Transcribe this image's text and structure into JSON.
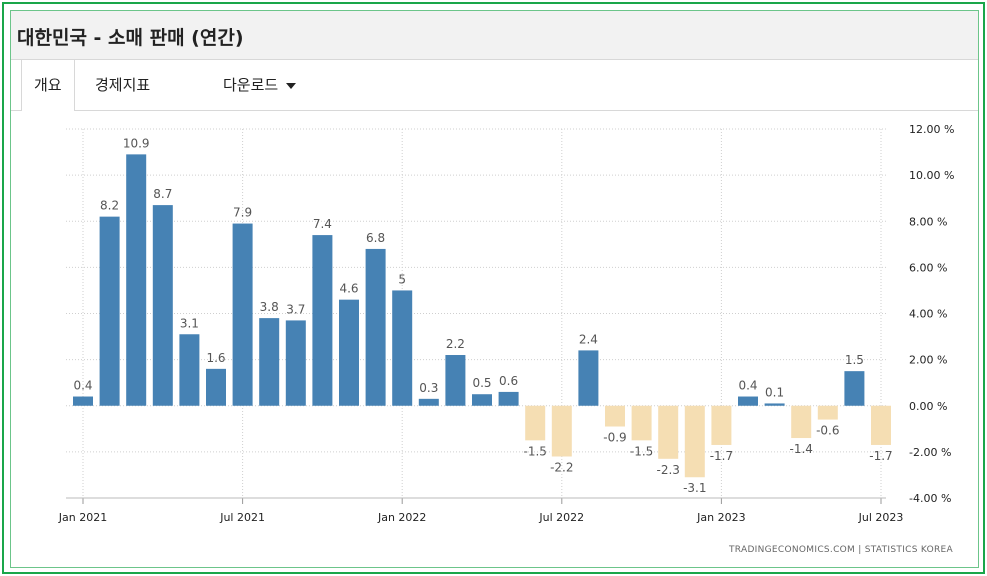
{
  "title": "대한민국 - 소매 판매 (연간)",
  "tabs": [
    {
      "label": "개요"
    },
    {
      "label": "경제지표"
    },
    {
      "label": "다운로드"
    }
  ],
  "source": "TRADINGECONOMICS.COM | STATISTICS KOREA",
  "colors": {
    "positive": "#4682b4",
    "negative": "#f5deb3"
  },
  "chart_data": {
    "type": "bar",
    "title": "대한민국 - 소매 판매 (연간)",
    "xlabel": "",
    "ylabel": "",
    "ylim": [
      -4,
      12
    ],
    "yticks": [
      "12.00 %",
      "10.00 %",
      "8.00 %",
      "6.00 %",
      "4.00 %",
      "2.00 %",
      "0.00 %",
      "-2.00 %",
      "-4.00 %"
    ],
    "xticks": [
      "Jan 2021",
      "Jul 2021",
      "Jan 2022",
      "Jul 2022",
      "Jan 2023",
      "Jul 2023"
    ],
    "categories": [
      "Jan 2021",
      "Feb 2021",
      "Mar 2021",
      "Apr 2021",
      "May 2021",
      "Jun 2021",
      "Jul 2021",
      "Aug 2021",
      "Sep 2021",
      "Oct 2021",
      "Nov 2021",
      "Dec 2021",
      "Jan 2022",
      "Feb 2022",
      "Mar 2022",
      "Apr 2022",
      "May 2022",
      "Jun 2022",
      "Jul 2022",
      "Aug 2022",
      "Sep 2022",
      "Oct 2022",
      "Nov 2022",
      "Dec 2022",
      "Jan 2023",
      "Feb 2023",
      "Mar 2023",
      "Apr 2023",
      "May 2023",
      "Jun 2023",
      "Jul 2023"
    ],
    "values": [
      0.4,
      8.2,
      10.9,
      8.7,
      3.1,
      1.6,
      7.9,
      3.8,
      3.7,
      7.4,
      4.6,
      6.8,
      5,
      0.3,
      2.2,
      0.5,
      0.6,
      -1.5,
      -2.2,
      2.4,
      -0.9,
      -1.5,
      -2.3,
      -3.1,
      -1.7,
      0.4,
      0.1,
      -1.4,
      -0.6,
      1.5,
      -1.7
    ],
    "labels": [
      "0.4",
      "8.2",
      "10.9",
      "8.7",
      "3.1",
      "1.6",
      "7.9",
      "3.8",
      "3.7",
      "7.4",
      "4.6",
      "6.8",
      "5",
      "0.3",
      "2.2",
      "0.5",
      "0.6",
      "-1.5",
      "-2.2",
      "2.4",
      "-0.9",
      "-1.5",
      "-2.3",
      "-3.1",
      "-1.7",
      "0.4",
      "0.1",
      "-1.4",
      "-0.6",
      "1.5",
      "-1.7"
    ],
    "grid": true,
    "legend": "none"
  }
}
